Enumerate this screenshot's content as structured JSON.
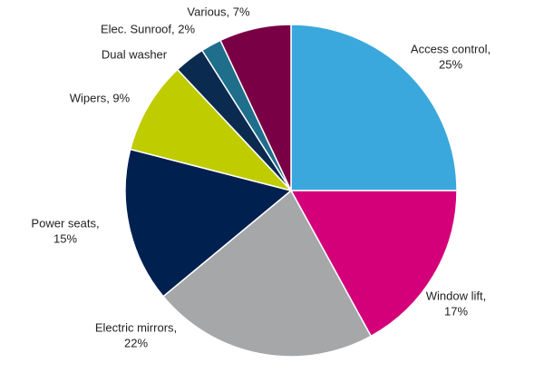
{
  "chart_data": {
    "type": "pie",
    "labels": [
      [
        "Access control,",
        "25%"
      ],
      [
        "Window lift,",
        "17%"
      ],
      [
        "Electric mirrors,",
        "22%"
      ],
      [
        "Power seats,",
        "15%"
      ],
      [
        "Wipers, 9%"
      ],
      [
        "Dual washer"
      ],
      [
        "Elec. Sunroof, 2%"
      ],
      [
        "Various, 7%"
      ]
    ],
    "values": [
      25,
      17,
      22,
      15,
      9,
      3,
      2,
      7
    ],
    "colors": [
      "#3aa8dc",
      "#d4007a",
      "#a6a7a9",
      "#00204f",
      "#bfcc00",
      "#0b2a50",
      "#1f6e8c",
      "#7a0046"
    ]
  }
}
